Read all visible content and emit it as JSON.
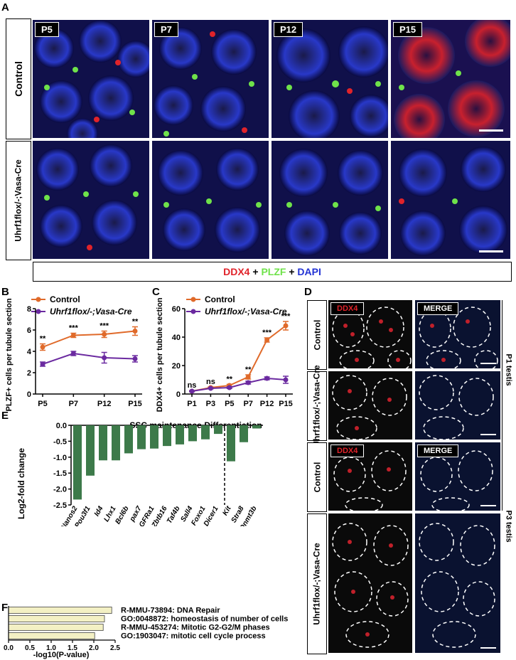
{
  "panels": {
    "A": "A",
    "B": "B",
    "C": "C",
    "D": "D",
    "E": "E",
    "F": "F"
  },
  "panelA": {
    "columns": [
      "P5",
      "P7",
      "P12",
      "P15"
    ],
    "rows": [
      "Control",
      "Uhrf1flox/-;Vasa-Cre"
    ],
    "legend": {
      "ddx4": "DDX4",
      "plus1": " + ",
      "plzf": "PLZF",
      "plus2": " + ",
      "dapi": "DAPI"
    },
    "colors": {
      "ddx4": "#e0232a",
      "plzf": "#6fe24a",
      "dapi": "#2232d4"
    }
  },
  "panelD": {
    "rows": [
      "Control",
      "Uhrf1flox/-;Vasa-Cre",
      "Control",
      "Uhrf1flox/-;Vasa-Cre"
    ],
    "col_labels": [
      "DDX4",
      "MERGE"
    ],
    "side_labels": [
      "P1 testis",
      "P3 testis"
    ]
  },
  "chart_data": [
    {
      "id": "B",
      "type": "line",
      "categories": [
        "P5",
        "P7",
        "P12",
        "P15"
      ],
      "ylabel": "No. of PLZF+ cells per tubule section",
      "ylim": [
        0,
        8
      ],
      "yticks": [
        0,
        2,
        4,
        6,
        8
      ],
      "series": [
        {
          "name": "Control",
          "color": "#e06a2a",
          "values": [
            4.4,
            5.5,
            5.6,
            5.9
          ],
          "err": [
            0.3,
            0.2,
            0.3,
            0.4
          ]
        },
        {
          "name": "Uhrf1flox/-;Vasa-Cre",
          "color": "#6b2aa0",
          "values": [
            2.8,
            3.8,
            3.4,
            3.3
          ],
          "err": [
            0.2,
            0.2,
            0.5,
            0.3
          ]
        }
      ],
      "significance": [
        "**",
        "***",
        "***",
        "**"
      ]
    },
    {
      "id": "C",
      "type": "line",
      "categories": [
        "P1",
        "P3",
        "P5",
        "P7",
        "P12",
        "P15"
      ],
      "ylabel": "No. of DDX4+ cells per tubule section",
      "ylim": [
        0,
        60
      ],
      "yticks": [
        0,
        20,
        40,
        60
      ],
      "series": [
        {
          "name": "Control",
          "color": "#e06a2a",
          "values": [
            2,
            4.5,
            6,
            12,
            38,
            48
          ],
          "err": [
            0.4,
            0.5,
            0.8,
            1.5,
            1.5,
            3
          ]
        },
        {
          "name": "Uhrf1flox/-;Vasa-Cre",
          "color": "#6b2aa0",
          "values": [
            2,
            4,
            4.5,
            8,
            11,
            10
          ],
          "err": [
            0.4,
            0.4,
            0.6,
            1,
            1,
            2.5
          ]
        }
      ],
      "significance": [
        "ns",
        "ns",
        "**",
        "**",
        "***",
        "***"
      ]
    },
    {
      "id": "E",
      "type": "bar",
      "categories": [
        "Nanos2",
        "Pou3f1",
        "Id4",
        "Lhx1",
        "Bcl6b",
        "pax7",
        "GFRa1",
        "Zbtb16",
        "Taf4b",
        "Sall4",
        "Foxo1",
        "Dicer1",
        "Kit",
        "Stra8",
        "Dnmt3b"
      ],
      "values": [
        -2.33,
        -1.58,
        -1.1,
        -1.1,
        -0.88,
        -0.75,
        -0.73,
        -0.65,
        -0.6,
        -0.5,
        -0.44,
        -0.27,
        -1.13,
        -0.53,
        -0.1
      ],
      "ylabel": "Log2-fold change",
      "ylim": [
        -2.5,
        0
      ],
      "yticks": [
        "0.0",
        "-0.5",
        "-1.0",
        "-1.5",
        "-2.0",
        "-2.5"
      ],
      "groups": [
        "SSC maintenance",
        "Differentiation"
      ],
      "color": "#3d7a4a"
    },
    {
      "id": "F",
      "type": "bar",
      "orientation": "horizontal",
      "categories": [
        "R-MMU-73894: DNA Repair",
        "GO:0048872: homeostasis of number of cells",
        "R-MMU-453274: Mitotic G2-G2/M phases",
        "GO:1903047: mitotic cell cycle process"
      ],
      "values": [
        2.42,
        2.25,
        2.22,
        2.02
      ],
      "xlabel": "-log10(P-value)",
      "xlim": [
        0,
        2.5
      ],
      "xticks": [
        "0.0",
        "0.5",
        "1.0",
        "1.5",
        "2.0",
        "2.5"
      ],
      "color": "#f3f0c4"
    }
  ]
}
